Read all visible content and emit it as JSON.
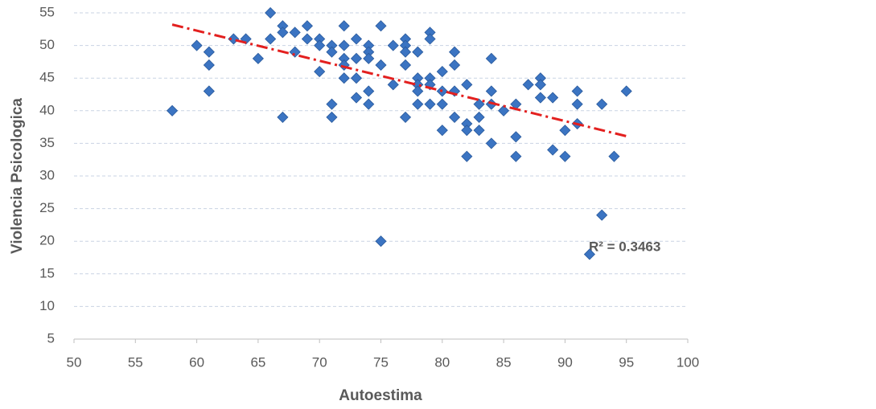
{
  "chart_data": {
    "type": "scatter",
    "x_label": "Autoestima",
    "y_label": "Violencia Psicologica",
    "xlim": [
      50,
      100
    ],
    "xticks": [
      50,
      55,
      60,
      65,
      70,
      75,
      80,
      85,
      90,
      95,
      100
    ],
    "ylim": [
      5,
      55
    ],
    "yticks": [
      5,
      10,
      15,
      20,
      25,
      30,
      35,
      40,
      45,
      50,
      55
    ],
    "grid": true,
    "series": [
      {
        "color": "#3b74c2",
        "x": [
          58,
          60,
          61,
          61,
          61,
          63,
          64,
          65,
          66,
          66,
          67,
          67,
          67,
          68,
          68,
          69,
          69,
          70,
          70,
          70,
          71,
          71,
          71,
          71,
          72,
          72,
          72,
          72,
          72,
          73,
          73,
          73,
          73,
          74,
          74,
          74,
          74,
          74,
          75,
          75,
          75,
          76,
          76,
          77,
          77,
          77,
          77,
          77,
          78,
          78,
          78,
          78,
          78,
          79,
          79,
          79,
          79,
          79,
          80,
          80,
          80,
          80,
          81,
          81,
          81,
          81,
          82,
          82,
          82,
          82,
          83,
          83,
          83,
          84,
          84,
          84,
          84,
          85,
          86,
          86,
          86,
          87,
          88,
          88,
          88,
          89,
          89,
          90,
          90,
          91,
          91,
          91,
          92,
          93,
          93,
          94,
          95
        ],
        "values": [
          40,
          50,
          49,
          47,
          43,
          51,
          51,
          48,
          55,
          51,
          53,
          52,
          39,
          52,
          49,
          53,
          51,
          51,
          50,
          46,
          50,
          49,
          41,
          39,
          53,
          50,
          48,
          47,
          45,
          51,
          48,
          45,
          42,
          50,
          49,
          48,
          43,
          41,
          53,
          47,
          20,
          50,
          44,
          51,
          50,
          49,
          47,
          39,
          49,
          45,
          44,
          43,
          41,
          52,
          51,
          45,
          44,
          41,
          46,
          43,
          41,
          37,
          49,
          47,
          43,
          39,
          44,
          38,
          37,
          33,
          41,
          39,
          37,
          48,
          43,
          41,
          35,
          40,
          41,
          36,
          33,
          44,
          45,
          44,
          42,
          42,
          34,
          37,
          33,
          43,
          41,
          38,
          18,
          41,
          24,
          33,
          43
        ]
      }
    ],
    "trendline": {
      "x": [
        58,
        95
      ],
      "values": [
        53.2,
        36.1
      ],
      "color": "#e3201f",
      "label": "R² = 0.3463"
    }
  }
}
